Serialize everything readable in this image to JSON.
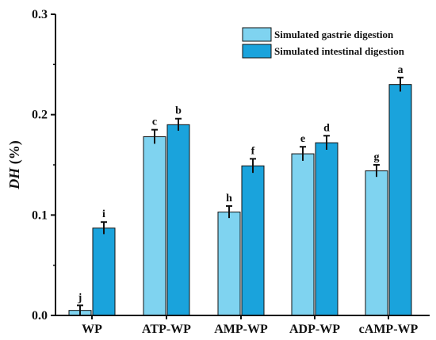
{
  "chart_data": {
    "type": "bar",
    "title": "",
    "xlabel": "",
    "ylabel": "DH (%)",
    "ylabel_parts": {
      "italic": "DH",
      "plain": " (%)"
    },
    "ylim": [
      0,
      0.3
    ],
    "yticks": [
      "0.0",
      "0.1",
      "0.2",
      "0.3"
    ],
    "ytick_values": [
      0,
      0.1,
      0.2,
      0.3
    ],
    "grid": false,
    "legend_position": "top-right",
    "categories": [
      "WP",
      "ATP-WP",
      "AMP-WP",
      "ADP-WP",
      "cAMP-WP"
    ],
    "series": [
      {
        "name": "Simulated gastrie digestion",
        "color": "#7fd3f0",
        "values": [
          0.005,
          0.178,
          0.103,
          0.161,
          0.144
        ],
        "errors": [
          0.005,
          0.007,
          0.006,
          0.007,
          0.006
        ],
        "labels": [
          "j",
          "c",
          "h",
          "e",
          "g"
        ]
      },
      {
        "name": "Simulated intestinal digestion",
        "color": "#1aa3dc",
        "values": [
          0.087,
          0.19,
          0.149,
          0.172,
          0.23
        ],
        "errors": [
          0.006,
          0.006,
          0.007,
          0.007,
          0.007
        ],
        "labels": [
          "i",
          "b",
          "f",
          "d",
          "a"
        ]
      }
    ]
  }
}
